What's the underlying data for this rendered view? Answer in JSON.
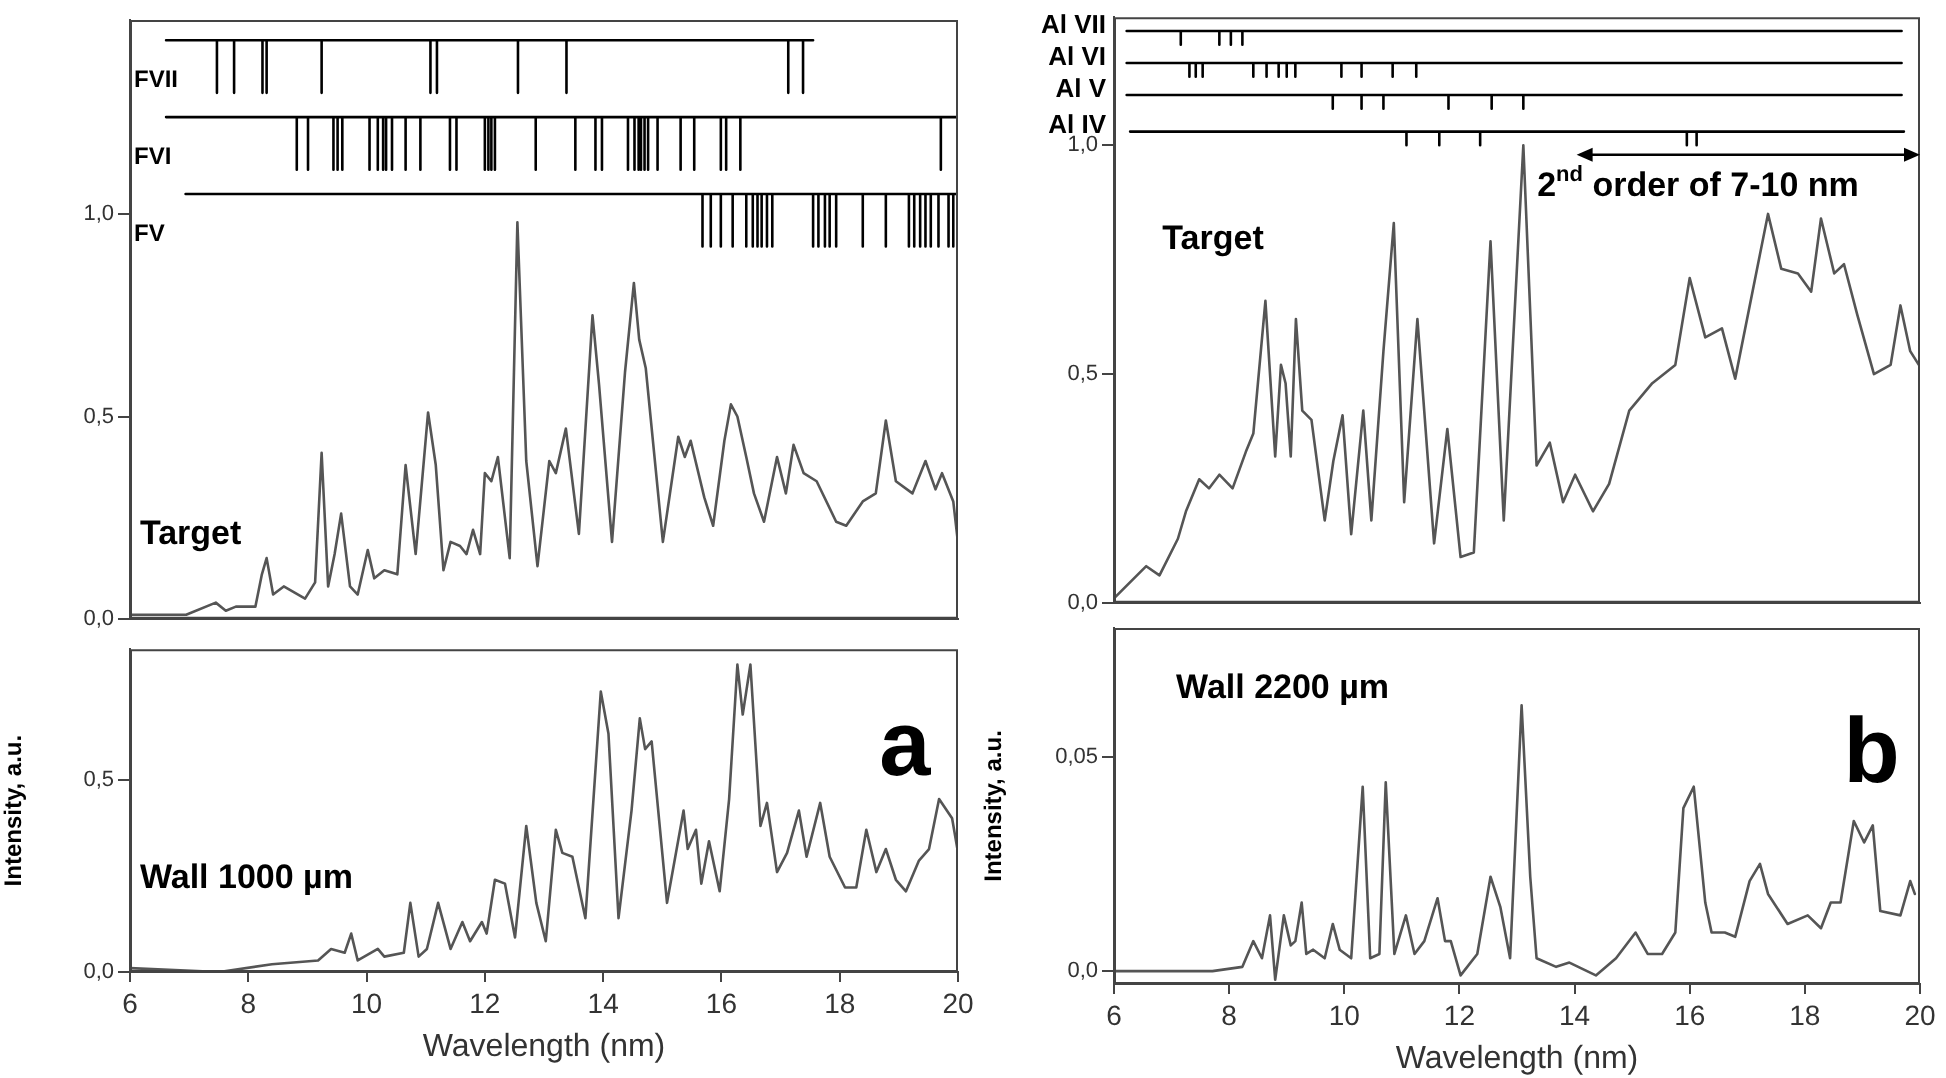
{
  "chart_data": [
    {
      "type": "line",
      "xlim": [
        6,
        20
      ],
      "ylim": [
        0,
        1.48
      ],
      "yticks": [
        {
          "value": 0,
          "label": "0,0"
        },
        {
          "value": 0.5,
          "label": "0,5"
        },
        {
          "value": 1,
          "label": "1,0"
        }
      ],
      "tick_labels": "y",
      "grid": false,
      "legend": false,
      "marker": "none",
      "annotations": [
        "Target"
      ],
      "series": [
        {
          "color": "#555555",
          "x": [
            6.0,
            6.95,
            7.45,
            7.62,
            7.79,
            8.12,
            8.23,
            8.31,
            8.42,
            8.6,
            8.96,
            9.13,
            9.24,
            9.35,
            9.46,
            9.57,
            9.72,
            9.85,
            10.02,
            10.13,
            10.3,
            10.52,
            10.66,
            10.83,
            11.04,
            11.17,
            11.3,
            11.42,
            11.58,
            11.69,
            11.8,
            11.92,
            12.0,
            12.11,
            12.22,
            12.42,
            12.55,
            12.7,
            12.89,
            13.09,
            13.2,
            13.37,
            13.59,
            13.82,
            13.93,
            14.15,
            14.37,
            14.52,
            14.61,
            14.72,
            15.01,
            15.27,
            15.38,
            15.48,
            15.71,
            15.86,
            16.05,
            16.16,
            16.27,
            16.42,
            16.55,
            16.72,
            16.94,
            17.09,
            17.22,
            17.39,
            17.61,
            17.94,
            18.11,
            18.39,
            18.61,
            18.78,
            18.95,
            19.23,
            19.45,
            19.62,
            19.73,
            19.92,
            19.99
          ],
          "values": [
            0.01,
            0.01,
            0.04,
            0.02,
            0.03,
            0.03,
            0.11,
            0.15,
            0.06,
            0.08,
            0.05,
            0.09,
            0.41,
            0.08,
            0.16,
            0.26,
            0.08,
            0.06,
            0.17,
            0.1,
            0.12,
            0.11,
            0.38,
            0.16,
            0.51,
            0.38,
            0.12,
            0.19,
            0.18,
            0.16,
            0.22,
            0.16,
            0.36,
            0.34,
            0.4,
            0.15,
            0.98,
            0.39,
            0.13,
            0.39,
            0.36,
            0.47,
            0.21,
            0.75,
            0.58,
            0.19,
            0.61,
            0.83,
            0.69,
            0.62,
            0.19,
            0.45,
            0.4,
            0.44,
            0.3,
            0.23,
            0.44,
            0.53,
            0.5,
            0.4,
            0.31,
            0.24,
            0.4,
            0.31,
            0.43,
            0.36,
            0.34,
            0.24,
            0.23,
            0.29,
            0.31,
            0.49,
            0.34,
            0.31,
            0.39,
            0.32,
            0.36,
            0.29,
            0.2
          ]
        },
        {
          "name": "FVII",
          "color": "#000000",
          "x": [
            6.61,
            7.47,
            7.47,
            7.47,
            7.76,
            7.76,
            7.76,
            8.24,
            8.24,
            8.24,
            8.31,
            8.31,
            8.31,
            9.24,
            9.24,
            9.24,
            11.08,
            11.08,
            11.08,
            11.19,
            11.19,
            11.19,
            12.56,
            12.56,
            12.56,
            13.38,
            13.38,
            13.38,
            17.13,
            17.13,
            17.13,
            17.38,
            17.38,
            17.38,
            17.55
          ],
          "values": [
            1.43,
            1.43,
            1.3,
            1.43,
            1.43,
            1.3,
            1.43,
            1.43,
            1.3,
            1.43,
            1.43,
            1.3,
            1.43,
            1.43,
            1.3,
            1.43,
            1.43,
            1.3,
            1.43,
            1.43,
            1.3,
            1.43,
            1.43,
            1.3,
            1.43,
            1.43,
            1.3,
            1.43,
            1.43,
            1.3,
            1.43,
            1.43,
            1.3,
            1.43,
            1.43
          ]
        },
        {
          "name": "FVI",
          "color": "#000000",
          "x": [
            6.61,
            8.82,
            8.82,
            8.82,
            9.01,
            9.01,
            9.01,
            9.44,
            9.44,
            9.44,
            9.51,
            9.51,
            9.51,
            9.59,
            9.59,
            9.59,
            10.05,
            10.05,
            10.05,
            10.19,
            10.19,
            10.19,
            10.28,
            10.28,
            10.28,
            10.33,
            10.33,
            10.33,
            10.43,
            10.43,
            10.43,
            10.66,
            10.66,
            10.66,
            10.91,
            10.91,
            10.91,
            11.41,
            11.41,
            11.41,
            11.52,
            11.52,
            11.52,
            12.0,
            12.0,
            12.0,
            12.06,
            12.06,
            12.06,
            12.11,
            12.11,
            12.11,
            12.17,
            12.17,
            12.17,
            12.86,
            12.86,
            12.86,
            13.53,
            13.53,
            13.53,
            13.87,
            13.87,
            13.87,
            13.98,
            13.98,
            13.98,
            14.42,
            14.42,
            14.42,
            14.53,
            14.53,
            14.53,
            14.6,
            14.6,
            14.6,
            14.64,
            14.64,
            14.64,
            14.7,
            14.7,
            14.7,
            14.76,
            14.76,
            14.76,
            14.92,
            14.92,
            14.92,
            15.31,
            15.31,
            15.31,
            15.54,
            15.54,
            15.54,
            15.99,
            15.99,
            15.99,
            16.08,
            16.08,
            16.08,
            16.32,
            16.32,
            16.32,
            19.71,
            19.71,
            19.71,
            19.97
          ],
          "values": [
            1.24,
            1.24,
            1.11,
            1.24,
            1.24,
            1.11,
            1.24,
            1.24,
            1.11,
            1.24,
            1.24,
            1.11,
            1.24,
            1.24,
            1.11,
            1.24,
            1.24,
            1.11,
            1.24,
            1.24,
            1.11,
            1.24,
            1.24,
            1.11,
            1.24,
            1.24,
            1.11,
            1.24,
            1.24,
            1.11,
            1.24,
            1.24,
            1.11,
            1.24,
            1.24,
            1.11,
            1.24,
            1.24,
            1.11,
            1.24,
            1.24,
            1.11,
            1.24,
            1.24,
            1.11,
            1.24,
            1.24,
            1.11,
            1.24,
            1.24,
            1.11,
            1.24,
            1.24,
            1.11,
            1.24,
            1.24,
            1.11,
            1.24,
            1.24,
            1.11,
            1.24,
            1.24,
            1.11,
            1.24,
            1.24,
            1.11,
            1.24,
            1.24,
            1.11,
            1.24,
            1.24,
            1.11,
            1.24,
            1.24,
            1.11,
            1.24,
            1.24,
            1.11,
            1.24,
            1.24,
            1.11,
            1.24,
            1.24,
            1.11,
            1.24,
            1.24,
            1.11,
            1.24,
            1.24,
            1.11,
            1.24,
            1.24,
            1.11,
            1.24,
            1.24,
            1.11,
            1.24,
            1.24,
            1.11,
            1.24,
            1.24,
            1.11,
            1.24,
            1.24,
            1.11,
            1.24,
            1.24
          ]
        },
        {
          "name": "FV",
          "color": "#000000",
          "x": [
            6.94,
            15.68,
            15.68,
            15.68,
            15.82,
            15.82,
            15.82,
            15.99,
            15.99,
            15.99,
            16.19,
            16.19,
            16.19,
            16.42,
            16.42,
            16.42,
            16.53,
            16.53,
            16.53,
            16.61,
            16.61,
            16.61,
            16.68,
            16.68,
            16.68,
            16.77,
            16.77,
            16.77,
            16.86,
            16.86,
            16.86,
            17.55,
            17.55,
            17.55,
            17.64,
            17.64,
            17.64,
            17.75,
            17.75,
            17.75,
            17.83,
            17.83,
            17.83,
            17.94,
            17.94,
            17.94,
            18.39,
            18.39,
            18.39,
            18.78,
            18.78,
            18.78,
            19.17,
            19.17,
            19.17,
            19.26,
            19.26,
            19.26,
            19.36,
            19.36,
            19.36,
            19.45,
            19.45,
            19.45,
            19.54,
            19.54,
            19.54,
            19.67,
            19.67,
            19.67,
            19.84,
            19.84,
            19.84,
            19.92,
            19.92,
            19.92,
            20
          ],
          "values": [
            1.05,
            1.05,
            0.92,
            1.05,
            1.05,
            0.92,
            1.05,
            1.05,
            0.92,
            1.05,
            1.05,
            0.92,
            1.05,
            1.05,
            0.92,
            1.05,
            1.05,
            0.92,
            1.05,
            1.05,
            0.92,
            1.05,
            1.05,
            0.92,
            1.05,
            1.05,
            0.92,
            1.05,
            1.05,
            0.92,
            1.05,
            1.05,
            0.92,
            1.05,
            1.05,
            0.92,
            1.05,
            1.05,
            0.92,
            1.05,
            1.05,
            0.92,
            1.05,
            1.05,
            0.92,
            1.05,
            1.05,
            0.92,
            1.05,
            1.05,
            0.92,
            1.05,
            1.05,
            0.92,
            1.05,
            1.05,
            0.92,
            1.05,
            1.05,
            0.92,
            1.05,
            1.05,
            0.92,
            1.05,
            1.05,
            0.92,
            1.05,
            1.05,
            0.92,
            1.05,
            1.05,
            0.92,
            1.05,
            1.05,
            0.92,
            1.05,
            1.05
          ]
        }
      ]
    },
    {
      "type": "line",
      "xlim": [
        6,
        20
      ],
      "xticks": [
        6,
        8,
        10,
        12,
        14,
        16,
        18,
        20
      ],
      "ylim": [
        0,
        0.84
      ],
      "yticks": [
        {
          "value": 0,
          "label": "0,0"
        },
        {
          "value": 0.5,
          "label": "0,5"
        }
      ],
      "xlabel": "Wavelength (nm)",
      "ylabel": "Intensity, a.u.",
      "grid": false,
      "legend": false,
      "marker": "none",
      "annotations": [
        "Wall 1000 µm",
        "a"
      ],
      "series": [
        {
          "color": "#555555",
          "x": [
            6.0,
            7.51,
            8.4,
            9.18,
            9.4,
            9.63,
            9.74,
            9.85,
            10.19,
            10.3,
            10.63,
            10.74,
            10.88,
            11.02,
            11.21,
            11.42,
            11.62,
            11.75,
            11.95,
            12.03,
            12.17,
            12.34,
            12.51,
            12.7,
            12.87,
            13.03,
            13.2,
            13.31,
            13.48,
            13.7,
            13.96,
            14.09,
            14.26,
            14.48,
            14.62,
            14.71,
            14.82,
            15.08,
            15.36,
            15.43,
            15.57,
            15.66,
            15.79,
            15.97,
            16.13,
            16.27,
            16.36,
            16.49,
            16.66,
            16.77,
            16.94,
            17.11,
            17.31,
            17.44,
            17.67,
            17.83,
            18.09,
            18.28,
            18.45,
            18.62,
            18.78,
            18.95,
            19.12,
            19.34,
            19.51,
            19.68,
            19.9,
            19.99
          ],
          "values": [
            0.01,
            0.0,
            0.02,
            0.03,
            0.06,
            0.05,
            0.1,
            0.03,
            0.06,
            0.04,
            0.05,
            0.18,
            0.04,
            0.06,
            0.18,
            0.06,
            0.13,
            0.08,
            0.13,
            0.1,
            0.24,
            0.23,
            0.09,
            0.38,
            0.18,
            0.08,
            0.37,
            0.31,
            0.3,
            0.14,
            0.73,
            0.62,
            0.14,
            0.42,
            0.66,
            0.58,
            0.6,
            0.18,
            0.42,
            0.32,
            0.37,
            0.23,
            0.34,
            0.21,
            0.45,
            0.8,
            0.67,
            0.8,
            0.38,
            0.44,
            0.26,
            0.31,
            0.42,
            0.3,
            0.44,
            0.3,
            0.22,
            0.22,
            0.37,
            0.26,
            0.32,
            0.24,
            0.21,
            0.29,
            0.32,
            0.45,
            0.4,
            0.32
          ]
        }
      ]
    },
    {
      "type": "line",
      "xlim": [
        6,
        20
      ],
      "ylim": [
        0,
        1.28
      ],
      "yticks": [
        {
          "value": 0,
          "label": "0,0"
        },
        {
          "value": 0.5,
          "label": "0,5"
        },
        {
          "value": 1,
          "label": "1,0"
        }
      ],
      "tick_labels": "y",
      "grid": false,
      "legend": false,
      "marker": "none",
      "annotations": [
        "Target",
        "2$^{nd}$ order of 7-10 nm"
      ],
      "series": [
        {
          "color": "#555555",
          "x": [
            6.0,
            6.56,
            6.79,
            7.11,
            7.25,
            7.48,
            7.65,
            7.83,
            8.06,
            8.29,
            8.42,
            8.63,
            8.8,
            8.9,
            8.98,
            9.07,
            9.16,
            9.27,
            9.43,
            9.66,
            9.81,
            9.97,
            10.12,
            10.33,
            10.47,
            10.68,
            10.86,
            11.04,
            11.27,
            11.56,
            11.79,
            12.02,
            12.25,
            12.54,
            12.77,
            13.11,
            13.34,
            13.57,
            13.8,
            14.01,
            14.32,
            14.6,
            14.95,
            15.35,
            15.75,
            16.0,
            16.27,
            16.56,
            16.79,
            17.36,
            17.59,
            17.88,
            18.11,
            18.28,
            18.51,
            18.68,
            18.91,
            19.2,
            19.49,
            19.66,
            19.83,
            19.98
          ],
          "values": [
            0.01,
            0.08,
            0.06,
            0.14,
            0.2,
            0.27,
            0.25,
            0.28,
            0.25,
            0.33,
            0.37,
            0.66,
            0.32,
            0.52,
            0.48,
            0.32,
            0.62,
            0.42,
            0.4,
            0.18,
            0.31,
            0.41,
            0.15,
            0.42,
            0.18,
            0.55,
            0.83,
            0.22,
            0.62,
            0.13,
            0.38,
            0.1,
            0.11,
            0.79,
            0.18,
            1.0,
            0.3,
            0.35,
            0.22,
            0.28,
            0.2,
            0.26,
            0.42,
            0.48,
            0.52,
            0.71,
            0.58,
            0.6,
            0.49,
            0.85,
            0.73,
            0.72,
            0.68,
            0.84,
            0.72,
            0.74,
            0.63,
            0.5,
            0.52,
            0.65,
            0.55,
            0.52
          ]
        },
        {
          "name": "Al VII",
          "color": "#000000",
          "x": [
            6.22,
            7.16,
            7.16,
            7.16,
            7.83,
            7.83,
            7.83,
            8.03,
            8.03,
            8.03,
            8.23,
            8.23,
            8.23,
            19.68
          ],
          "values": [
            1.25,
            1.25,
            1.22,
            1.25,
            1.25,
            1.22,
            1.25,
            1.25,
            1.22,
            1.25,
            1.25,
            1.22,
            1.25,
            1.25
          ]
        },
        {
          "name": "Al VI",
          "color": "#000000",
          "x": [
            6.22,
            7.31,
            7.31,
            7.31,
            7.42,
            7.42,
            7.42,
            7.54,
            7.54,
            7.54,
            8.42,
            8.42,
            8.42,
            8.65,
            8.65,
            8.65,
            8.86,
            8.86,
            8.86,
            9.0,
            9.0,
            9.0,
            9.15,
            9.15,
            9.15,
            9.95,
            9.95,
            9.95,
            10.3,
            10.3,
            10.3,
            10.84,
            10.84,
            10.84,
            11.25,
            11.25,
            11.25,
            19.68
          ],
          "values": [
            1.18,
            1.18,
            1.15,
            1.18,
            1.18,
            1.15,
            1.18,
            1.18,
            1.15,
            1.18,
            1.18,
            1.15,
            1.18,
            1.18,
            1.15,
            1.18,
            1.18,
            1.15,
            1.18,
            1.18,
            1.15,
            1.18,
            1.18,
            1.15,
            1.18,
            1.18,
            1.15,
            1.18,
            1.18,
            1.15,
            1.18,
            1.18,
            1.15,
            1.18,
            1.18,
            1.15,
            1.18,
            1.18
          ]
        },
        {
          "name": "Al V",
          "color": "#000000",
          "x": [
            6.22,
            9.8,
            9.8,
            9.8,
            10.3,
            10.3,
            10.3,
            10.68,
            10.68,
            10.68,
            11.81,
            11.81,
            11.81,
            12.56,
            12.56,
            12.56,
            13.11,
            13.11,
            13.11,
            19.68
          ],
          "values": [
            1.11,
            1.11,
            1.08,
            1.11,
            1.11,
            1.08,
            1.11,
            1.11,
            1.08,
            1.11,
            1.11,
            1.08,
            1.11,
            1.11,
            1.08,
            1.11,
            1.11,
            1.08,
            1.11,
            1.11
          ]
        },
        {
          "name": "Al IV",
          "color": "#000000",
          "x": [
            6.28,
            11.08,
            11.08,
            11.08,
            11.65,
            11.65,
            11.65,
            12.36,
            12.36,
            12.36,
            15.95,
            15.95,
            15.95,
            16.12,
            16.12,
            16.12,
            19.72
          ],
          "values": [
            1.03,
            1.03,
            1.0,
            1.03,
            1.03,
            1.0,
            1.03,
            1.03,
            1.0,
            1.03,
            1.03,
            1.0,
            1.03,
            1.03,
            1.0,
            1.03,
            1.03
          ]
        }
      ]
    },
    {
      "type": "line",
      "xlim": [
        6,
        20
      ],
      "xticks": [
        6,
        8,
        10,
        12,
        14,
        16,
        18,
        20
      ],
      "ylim": [
        -0.003,
        0.08
      ],
      "yticks": [
        {
          "value": 0,
          "label": "0,0"
        },
        {
          "value": 0.05,
          "label": "0,05"
        }
      ],
      "xlabel": "Wavelength (nm)",
      "ylabel": "Intensity, a.u.",
      "grid": false,
      "legend": false,
      "marker": "none",
      "annotations": [
        "Wall 2200 µm",
        "b"
      ],
      "series": [
        {
          "color": "#555555",
          "x": [
            6.0,
            7.14,
            7.71,
            8.23,
            8.42,
            8.57,
            8.71,
            8.8,
            8.95,
            9.07,
            9.15,
            9.26,
            9.34,
            9.46,
            9.66,
            9.8,
            9.92,
            10.12,
            10.32,
            10.45,
            10.61,
            10.72,
            10.87,
            11.07,
            11.22,
            11.39,
            11.62,
            11.75,
            11.85,
            12.02,
            12.31,
            12.54,
            12.71,
            12.88,
            13.08,
            13.23,
            13.34,
            13.68,
            13.91,
            14.37,
            14.72,
            15.06,
            15.27,
            15.52,
            15.75,
            15.89,
            16.07,
            16.27,
            16.38,
            16.61,
            16.79,
            17.04,
            17.22,
            17.36,
            17.7,
            18.05,
            18.28,
            18.45,
            18.62,
            18.85,
            19.03,
            19.18,
            19.31,
            19.66,
            19.83,
            19.91
          ],
          "values": [
            0.0,
            0.0,
            0.0,
            0.001,
            0.007,
            0.003,
            0.013,
            -0.002,
            0.013,
            0.006,
            0.007,
            0.016,
            0.004,
            0.005,
            0.003,
            0.011,
            0.005,
            0.003,
            0.043,
            0.003,
            0.004,
            0.044,
            0.004,
            0.013,
            0.004,
            0.007,
            0.017,
            0.007,
            0.007,
            -0.001,
            0.004,
            0.022,
            0.015,
            0.003,
            0.062,
            0.022,
            0.003,
            0.001,
            0.002,
            -0.001,
            0.003,
            0.009,
            0.004,
            0.004,
            0.009,
            0.038,
            0.043,
            0.016,
            0.009,
            0.009,
            0.008,
            0.021,
            0.025,
            0.018,
            0.011,
            0.013,
            0.01,
            0.016,
            0.016,
            0.035,
            0.03,
            0.034,
            0.014,
            0.013,
            0.021,
            0.018
          ]
        }
      ]
    }
  ]
}
